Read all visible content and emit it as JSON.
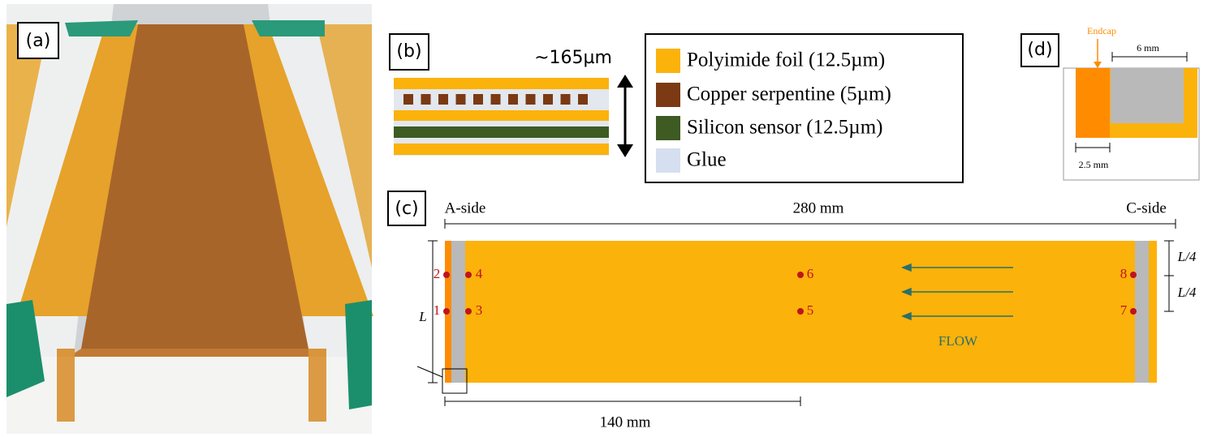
{
  "panels": {
    "a": {
      "label": "(a)"
    },
    "b": {
      "label": "(b)",
      "thickness": "~165µm",
      "legend": [
        "Polyimide foil (12.5µm)",
        "Copper serpentine (5µm)",
        "Silicon sensor (12.5µm)",
        "Glue"
      ]
    },
    "c": {
      "label": "(c)",
      "left_side": "A-side",
      "right_side": "C-side",
      "length": "280 mm",
      "half_length": "140 mm",
      "width_label": "L",
      "quarter_labels": [
        "L/4",
        "L/4"
      ],
      "flow": "FLOW",
      "sensors": [
        "1",
        "2",
        "3",
        "4",
        "5",
        "6",
        "7",
        "8"
      ]
    },
    "d": {
      "label": "(d)",
      "endcap": "Endcap",
      "gap": "6 mm",
      "endcap_width": "2.5 mm"
    }
  }
}
